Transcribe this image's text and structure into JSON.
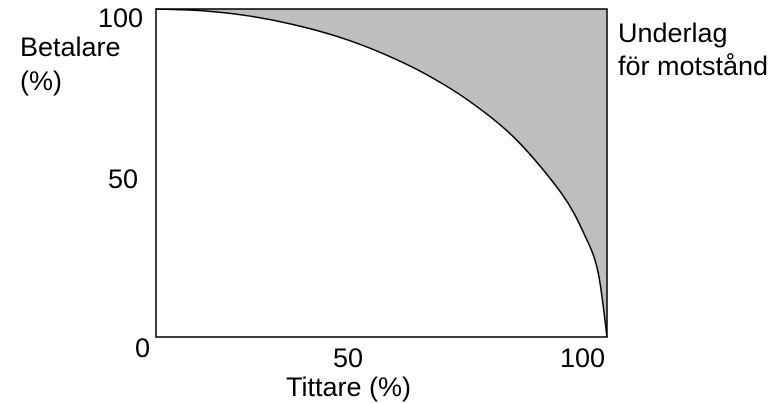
{
  "chart_data": {
    "type": "area",
    "x": [
      0,
      10,
      20,
      30,
      40,
      50,
      60,
      70,
      80,
      90,
      95,
      98,
      100
    ],
    "series": [
      {
        "name": "",
        "values": [
          100,
          99.5,
          98,
          95.4,
          91.7,
          86.6,
          80,
          71.4,
          60,
          43.6,
          31.2,
          19.9,
          0
        ]
      }
    ],
    "xlabel": "Tittare (%)",
    "ylabel_line1": "Betalare",
    "ylabel_line2": "(%)",
    "xlim": [
      0,
      100
    ],
    "ylim": [
      0,
      100
    ],
    "xticks": [
      "0",
      "50",
      "100"
    ],
    "yticks": [
      "0",
      "50",
      "100"
    ],
    "area_label_line1": "Underlag",
    "area_label_line2": "för motstånd",
    "grid": false,
    "colors": {
      "shaded_area": "#bcbec0",
      "frame": "#000000",
      "curve": "#000000"
    }
  }
}
